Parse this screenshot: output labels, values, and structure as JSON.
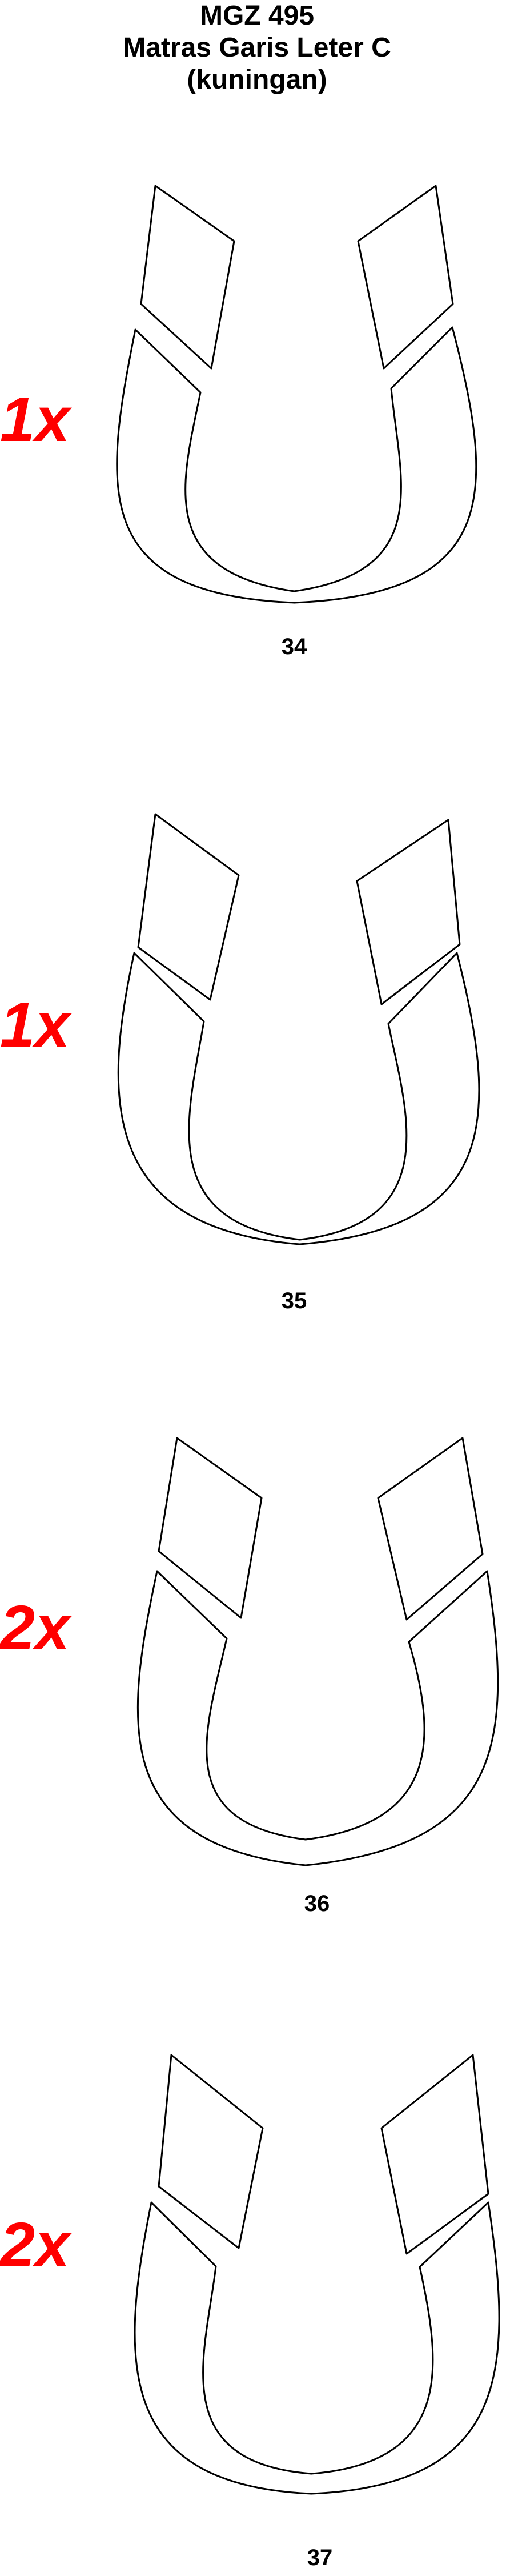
{
  "title": {
    "line1": "MGZ 495",
    "line2": "Matras Garis Leter C",
    "line3": "(kuningan)"
  },
  "accent_color": "#ff0000",
  "items": [
    {
      "quantity": "1x",
      "number": "34"
    },
    {
      "quantity": "1x",
      "number": "35"
    },
    {
      "quantity": "2x",
      "number": "36"
    },
    {
      "quantity": "2x",
      "number": "37"
    }
  ]
}
